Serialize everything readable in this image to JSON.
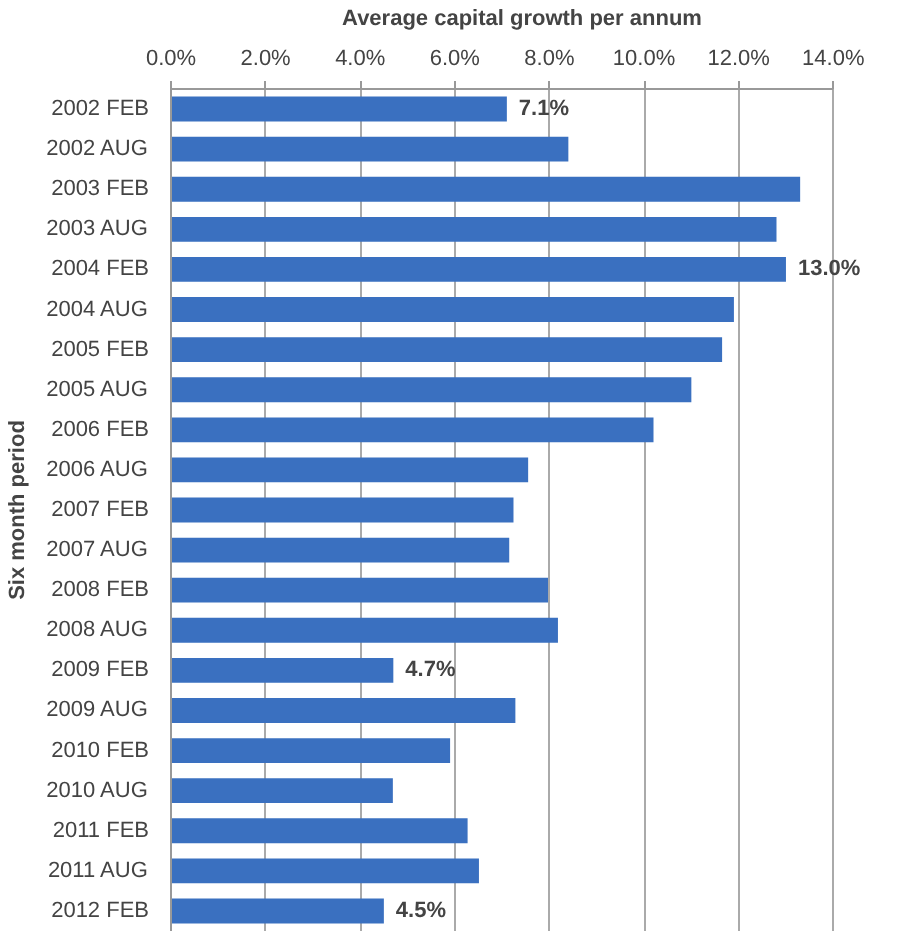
{
  "chart_data": {
    "type": "bar",
    "orientation": "horizontal",
    "xlabel": "Average capital growth per annum",
    "ylabel": "Six month period",
    "categories": [
      "2002 FEB",
      "2002 AUG",
      "2003 FEB",
      "2003 AUG",
      "2004 FEB",
      "2004 AUG",
      "2005 FEB",
      "2005 AUG",
      "2006 FEB",
      "2006 AUG",
      "2007 FEB",
      "2007 AUG",
      "2008 FEB",
      "2008 AUG",
      "2009 FEB",
      "2009 AUG",
      "2010 FEB",
      "2010 AUG",
      "2011 FEB",
      "2011 AUG",
      "2012 FEB"
    ],
    "values": [
      7.1,
      8.4,
      13.3,
      12.8,
      13.0,
      11.9,
      11.65,
      11.0,
      10.2,
      7.55,
      7.24,
      7.15,
      7.97,
      8.18,
      4.7,
      7.28,
      5.9,
      4.69,
      6.27,
      6.51,
      4.5
    ],
    "value_labels": [
      "7.1%",
      null,
      null,
      null,
      "13.0%",
      null,
      null,
      null,
      null,
      null,
      null,
      null,
      null,
      null,
      "4.7%",
      null,
      null,
      null,
      null,
      null,
      "4.5%"
    ],
    "color": "#3a70c0",
    "xlim": [
      0,
      14
    ],
    "xticks": [
      {
        "value": 0,
        "label": "0.0%"
      },
      {
        "value": 2,
        "label": "2.0%"
      },
      {
        "value": 4,
        "label": "4.0%"
      },
      {
        "value": 6,
        "label": "6.0%"
      },
      {
        "value": 8,
        "label": "8.0%"
      },
      {
        "value": 10,
        "label": "10.0%"
      },
      {
        "value": 12,
        "label": "12.0%"
      },
      {
        "value": 14,
        "label": "14.0%"
      }
    ],
    "grid": "x"
  }
}
